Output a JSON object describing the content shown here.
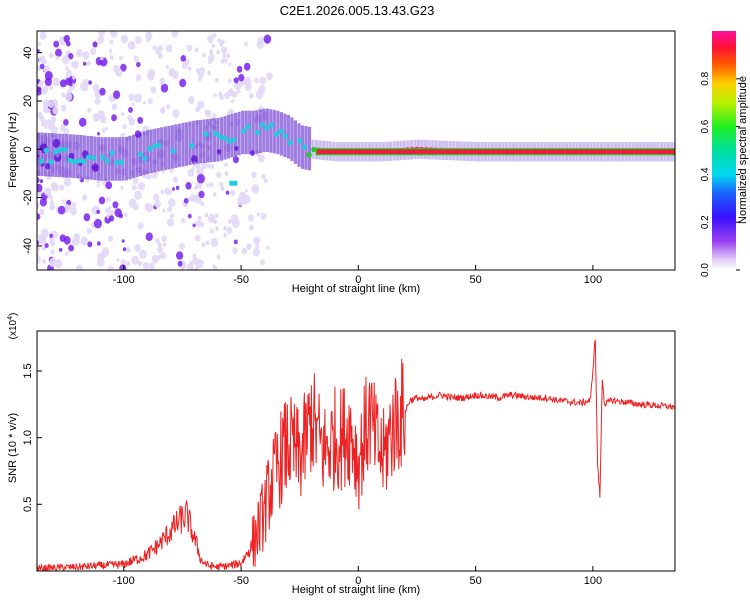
{
  "title": "C2E1.2026.005.13.43.G23",
  "colors": {
    "snr_line": "#ee2222",
    "axis": "#000000",
    "track_core": "#e8203a",
    "ridge": "#22cc22",
    "halo": "#c8b8f0",
    "purple": "#7a22ee",
    "cyan": "#22ccdd",
    "deep": "#5010c8",
    "light": "#e2d8f6"
  },
  "colorbar": {
    "label": "Normalized spectral amplitude",
    "ticks": [
      "0.0",
      "0.2",
      "0.4",
      "0.6",
      "0.8"
    ],
    "tick_values": [
      0.0,
      0.2,
      0.4,
      0.6,
      0.8
    ],
    "range": [
      0,
      1
    ]
  },
  "chart_data": [
    {
      "type": "heatmap",
      "name": "spectrogram",
      "xlabel": "Height of straight line (km)",
      "ylabel": "Frequency (Hz)",
      "xlim": [
        -137,
        135
      ],
      "ylim": [
        -50,
        49
      ],
      "xticks": [
        -100,
        -50,
        0,
        50,
        100
      ],
      "xtick_labels": [
        "-100",
        "-50",
        "0",
        "50",
        "100"
      ],
      "yticks": [
        -40,
        -20,
        0,
        20,
        40
      ],
      "ytick_labels": [
        "-40",
        "-20",
        "0",
        "20",
        "40"
      ],
      "ridge_frequency": {
        "x": [
          -137,
          -120,
          -110,
          -100,
          -90,
          -80,
          -70,
          -60,
          -50,
          -45,
          -40,
          -35,
          -30,
          -25,
          -20,
          -10,
          0,
          10,
          25,
          50,
          75,
          100,
          135
        ],
        "y": [
          -2,
          -3,
          -4,
          -4,
          -1,
          1,
          3,
          4,
          7,
          7,
          8,
          7,
          5,
          1,
          0,
          -1,
          -1,
          -1,
          0,
          -1,
          -1,
          -1,
          -1
        ],
        "amp": [
          0.35,
          0.3,
          0.3,
          0.4,
          0.45,
          0.45,
          0.45,
          0.4,
          0.45,
          0.45,
          0.45,
          0.45,
          0.45,
          0.45,
          0.5,
          0.6,
          0.75,
          0.9,
          0.95,
          0.95,
          0.95,
          0.95,
          0.95
        ]
      }
    },
    {
      "type": "line",
      "name": "snr",
      "xlabel": "Height of straight line (km)",
      "ylabel": "SNR (10 * v/v)",
      "multiplier_label": "(x10^4)",
      "multiplier_base": "(x10",
      "multiplier_exp": "4",
      "xlim": [
        -137,
        135
      ],
      "ylim": [
        0,
        1.8
      ],
      "xticks": [
        -100,
        -50,
        0,
        50,
        100
      ],
      "xtick_labels": [
        "-100",
        "-50",
        "0",
        "50",
        "100"
      ],
      "yticks": [
        0.5,
        1.0,
        1.5
      ],
      "ytick_labels": [
        "0.5",
        "1.0",
        "1.5"
      ],
      "series": [
        {
          "name": "SNR",
          "x": [
            -137,
            -120,
            -100,
            -90,
            -85,
            -80,
            -76,
            -73,
            -71,
            -69,
            -67,
            -64,
            -60,
            -55,
            -50,
            -45,
            -42,
            -40,
            -38,
            -35,
            -33,
            -30,
            -27,
            -25,
            -22,
            -20,
            -18,
            -15,
            -12,
            -10,
            -7,
            -5,
            -3,
            0,
            3,
            5,
            7,
            9,
            11,
            13,
            15,
            17,
            20,
            22,
            25,
            28,
            30,
            35,
            40,
            45,
            50,
            55,
            60,
            65,
            70,
            75,
            80,
            85,
            90,
            95,
            99,
            101,
            102,
            103,
            104,
            105,
            108,
            112,
            120,
            128,
            135
          ],
          "y": [
            0.02,
            0.03,
            0.05,
            0.12,
            0.2,
            0.3,
            0.38,
            0.42,
            0.3,
            0.2,
            0.08,
            0.04,
            0.03,
            0.04,
            0.06,
            0.2,
            0.35,
            0.45,
            0.6,
            0.75,
            0.85,
            0.95,
            0.9,
            0.85,
            1.0,
            1.15,
            1.05,
            0.9,
            0.95,
            1.0,
            1.0,
            1.05,
            1.05,
            0.8,
            1.05,
            1.15,
            1.0,
            0.9,
            0.85,
            1.0,
            1.1,
            1.15,
            1.2,
            1.28,
            1.3,
            1.28,
            1.3,
            1.32,
            1.3,
            1.3,
            1.32,
            1.31,
            1.3,
            1.32,
            1.31,
            1.3,
            1.3,
            1.28,
            1.27,
            1.26,
            1.28,
            1.75,
            0.8,
            0.55,
            1.45,
            1.25,
            1.28,
            1.27,
            1.25,
            1.24,
            1.23
          ]
        }
      ]
    }
  ]
}
